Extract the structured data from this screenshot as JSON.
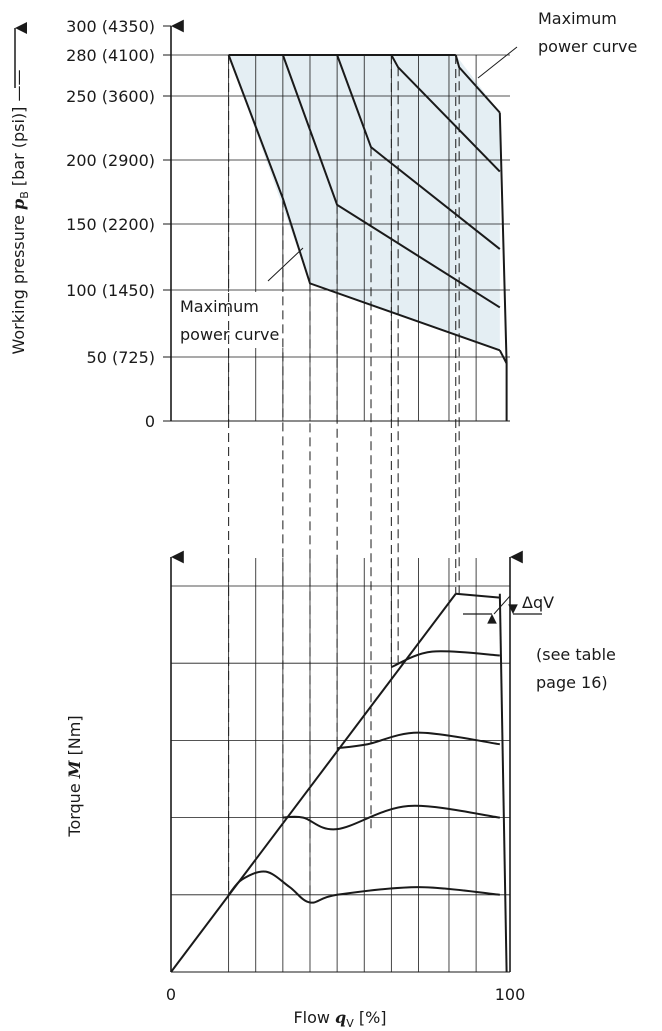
{
  "chart_data": [
    {
      "type": "line",
      "panel": "pressure",
      "ylabel_prefix": "Working pressure ",
      "ylabel_symbol": "p",
      "ylabel_sub": "B",
      "ylabel_suffix": " [bar (psi)]",
      "yticks": [
        {
          "value": 0,
          "label": "0"
        },
        {
          "value": 50,
          "label": "50 (725)"
        },
        {
          "value": 100,
          "label": "100 (1450)"
        },
        {
          "value": 150,
          "label": "150 (2200)"
        },
        {
          "value": 200,
          "label": "200 (2900)"
        },
        {
          "value": 250,
          "label": "250 (3600)"
        },
        {
          "value": 280,
          "label": "280 (4100)"
        },
        {
          "value": 300,
          "label": "300 (4350)"
        }
      ],
      "ylim": [
        0,
        300
      ],
      "xlim": [
        0,
        100
      ],
      "vertical_grid_x": [
        17,
        25,
        33,
        41,
        49,
        57,
        65,
        73,
        82,
        90
      ],
      "max_power_label_right": [
        "Maximum",
        "power curve"
      ],
      "max_power_label_left": [
        "Maximum",
        "power curve"
      ],
      "envelope": [
        [
          17,
          280
        ],
        [
          41,
          105
        ],
        [
          97,
          55
        ],
        [
          97,
          237
        ],
        [
          84,
          280
        ]
      ],
      "series": [
        {
          "x": [
            17,
            33,
            41,
            97
          ],
          "y": [
            280,
            170,
            105,
            55
          ]
        },
        {
          "x": [
            33,
            49,
            49,
            97
          ],
          "y": [
            280,
            165,
            165,
            87
          ]
        },
        {
          "x": [
            49,
            59,
            97
          ],
          "y": [
            280,
            210,
            131
          ]
        },
        {
          "x": [
            65,
            67,
            97
          ],
          "y": [
            280,
            271,
            191
          ]
        },
        {
          "x": [
            84,
            85,
            97
          ],
          "y": [
            280,
            271,
            237
          ]
        },
        {
          "x": [
            17,
            84
          ],
          "y": [
            280,
            280
          ]
        },
        {
          "x": [
            97,
            99,
            99
          ],
          "y": [
            237,
            45,
            0
          ]
        },
        {
          "x": [
            97,
            99
          ],
          "y": [
            55,
            45
          ]
        }
      ]
    },
    {
      "type": "line",
      "panel": "torque",
      "ylabel_prefix": "Torque ",
      "ylabel_symbol": "M",
      "ylabel_suffix": " [Nm]",
      "xlabel_prefix": "Flow ",
      "xlabel_symbol": "q",
      "xlabel_sub": "V",
      "xlabel_suffix": " [%]",
      "xticks": [
        {
          "value": 0,
          "label": "0"
        },
        {
          "value": 100,
          "label": "100"
        }
      ],
      "xlim": [
        0,
        100
      ],
      "ylim": [
        0,
        100
      ],
      "horizontal_grid_y": [
        20,
        40,
        60,
        80,
        100
      ],
      "vertical_grid_x": [
        17,
        25,
        33,
        41,
        49,
        57,
        65,
        73,
        82,
        90
      ],
      "delta_label": "ΔqV",
      "note": [
        "(see table",
        "page 16)"
      ],
      "series": [
        {
          "x": [
            0,
            84
          ],
          "y": [
            0,
            98
          ]
        },
        {
          "x": [
            17,
            21,
            28,
            35,
            41,
            49,
            73,
            97
          ],
          "y": [
            20,
            24,
            26,
            22,
            18,
            20,
            22,
            20
          ]
        },
        {
          "x": [
            33,
            39,
            49,
            70,
            97
          ],
          "y": [
            40,
            40,
            37,
            43,
            40
          ]
        },
        {
          "x": [
            49,
            58,
            73,
            97
          ],
          "y": [
            58,
            59,
            62,
            59
          ]
        },
        {
          "x": [
            65,
            77,
            97
          ],
          "y": [
            79,
            83,
            82
          ]
        },
        {
          "x": [
            84,
            97
          ],
          "y": [
            98,
            97
          ]
        },
        {
          "x": [
            97,
            99
          ],
          "y": [
            98,
            0
          ]
        }
      ],
      "dashed_connectors_x": [
        17,
        33,
        41,
        49,
        59,
        65,
        67,
        84,
        85
      ]
    }
  ]
}
